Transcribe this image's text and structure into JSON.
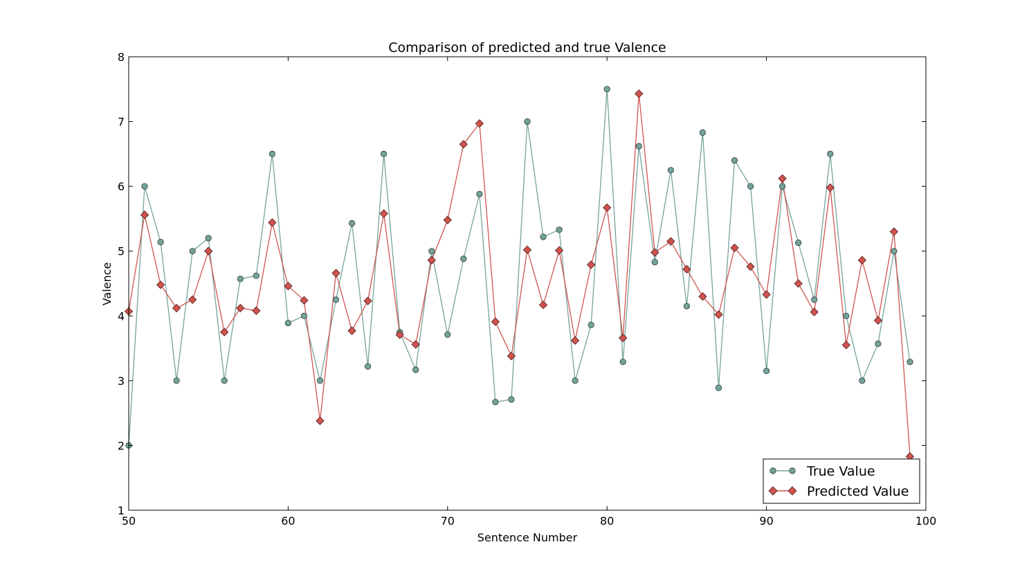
{
  "chart_data": {
    "type": "line",
    "title": "Comparison of predicted and true Valence",
    "xlabel": "Sentence Number",
    "ylabel": "Valence",
    "xlim": [
      50,
      100
    ],
    "ylim": [
      1,
      8
    ],
    "xticks": [
      50,
      60,
      70,
      80,
      90,
      100
    ],
    "yticks": [
      1,
      2,
      3,
      4,
      5,
      6,
      7,
      8
    ],
    "grid": false,
    "legend_position": "bottom-right",
    "x": [
      50,
      51,
      52,
      53,
      54,
      55,
      56,
      57,
      58,
      59,
      60,
      61,
      62,
      63,
      64,
      65,
      66,
      67,
      68,
      69,
      70,
      71,
      72,
      73,
      74,
      75,
      76,
      77,
      78,
      79,
      80,
      81,
      82,
      83,
      84,
      85,
      86,
      87,
      88,
      89,
      90,
      91,
      92,
      93,
      94,
      95,
      96,
      97,
      98,
      99
    ],
    "series": [
      {
        "name": "True Value",
        "marker": "circle",
        "color": "#75a29b",
        "values": [
          2.0,
          6.0,
          5.14,
          3.0,
          5.0,
          5.2,
          3.0,
          4.57,
          4.62,
          6.5,
          3.89,
          4.0,
          3.0,
          4.25,
          5.43,
          3.22,
          6.5,
          3.75,
          3.17,
          5.0,
          3.71,
          4.88,
          5.88,
          2.67,
          2.71,
          7.0,
          5.22,
          5.33,
          3.0,
          3.86,
          7.5,
          3.29,
          6.62,
          4.83,
          6.25,
          4.15,
          6.83,
          2.89,
          6.4,
          6.0,
          3.15,
          6.0,
          5.13,
          4.25,
          6.5,
          4.0,
          3.0,
          3.57,
          5.0,
          3.29
        ]
      },
      {
        "name": "Predicted Value",
        "marker": "diamond",
        "color": "#d0534f",
        "values": [
          4.07,
          5.56,
          4.48,
          4.12,
          4.25,
          5.0,
          3.75,
          4.12,
          4.08,
          5.44,
          4.46,
          4.24,
          2.38,
          4.66,
          3.77,
          4.23,
          5.58,
          3.71,
          3.56,
          4.86,
          5.48,
          6.65,
          6.97,
          3.91,
          3.38,
          5.02,
          4.17,
          5.01,
          3.62,
          4.79,
          5.67,
          3.66,
          7.43,
          4.98,
          5.15,
          4.72,
          4.3,
          4.02,
          5.05,
          4.76,
          4.33,
          6.12,
          4.5,
          4.06,
          5.98,
          3.55,
          4.86,
          3.93,
          5.3,
          1.83
        ]
      }
    ]
  }
}
